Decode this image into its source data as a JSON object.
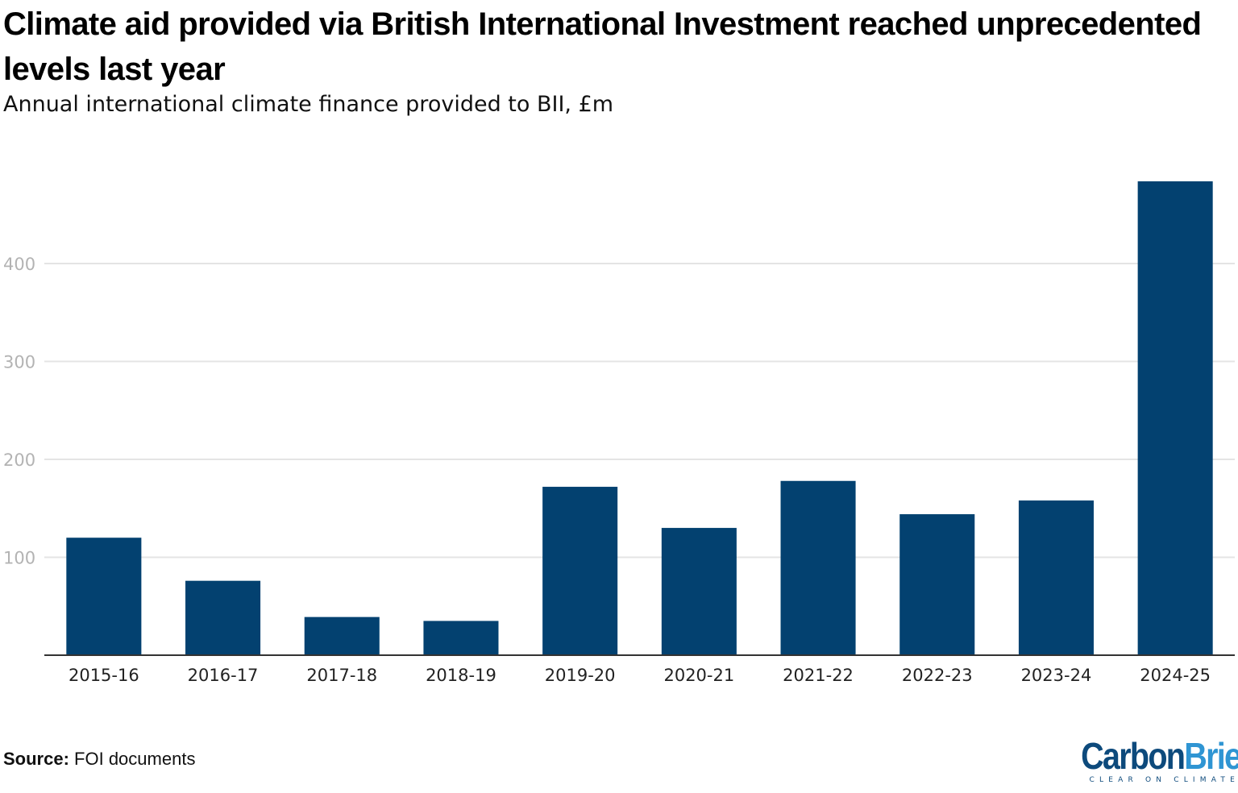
{
  "header": {
    "title": "Climate aid provided via British International Investment reached unprecedented levels last year",
    "subtitle": "Annual international climate finance provided to BII, £m"
  },
  "footer": {
    "source_label": "Source:",
    "source_text": "FOI documents",
    "logo": {
      "word_part1": "Carbon",
      "word_part2": "Brief",
      "tagline": "CLEAR ON CLIMATE"
    }
  },
  "colors": {
    "bar": "#034170",
    "gridline": "#e4e4e4",
    "axis": "#333333",
    "tick_label": "#b3b3b3",
    "logo_dark": "#0d4a7c",
    "logo_light": "#2f95d3"
  },
  "chart_data": {
    "type": "bar",
    "title": "Climate aid provided via British International Investment reached unprecedented levels last year",
    "subtitle": "Annual international climate finance provided to BII, £m",
    "xlabel": "",
    "ylabel": "",
    "categories": [
      "2015-16",
      "2016-17",
      "2017-18",
      "2018-19",
      "2019-20",
      "2020-21",
      "2021-22",
      "2022-23",
      "2023-24",
      "2024-25"
    ],
    "values": [
      120,
      76,
      39,
      35,
      172,
      130,
      178,
      144,
      158,
      484
    ],
    "ylim": [
      0,
      484
    ],
    "yticks": [
      100,
      200,
      300,
      400
    ],
    "ytick_labels": [
      "100",
      "200",
      "300",
      "400"
    ],
    "grid": true,
    "legend": "none"
  }
}
